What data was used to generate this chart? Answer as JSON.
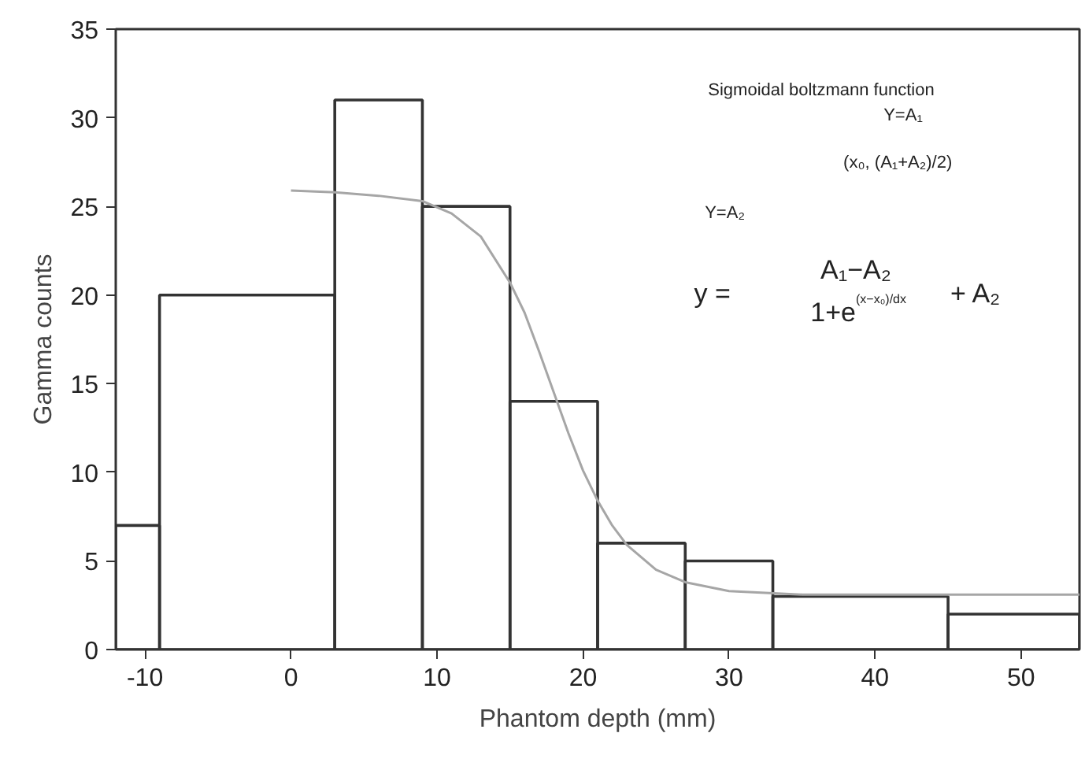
{
  "chart_data": {
    "type": "histogram",
    "xlabel": "Phantom depth (mm)",
    "ylabel": "Gamma counts",
    "series": [
      {
        "color": "#333333",
        "bins": [
          -12,
          -9,
          3,
          9,
          15,
          21,
          27,
          33,
          45,
          54
        ],
        "values": [
          7,
          20,
          31,
          25,
          14,
          6,
          5,
          3,
          2
        ]
      },
      {
        "type": "line",
        "color": "#a6a6a6",
        "x": [
          0,
          3,
          6,
          9,
          11,
          13,
          15,
          16,
          17,
          18,
          19,
          20,
          21,
          22,
          23,
          25,
          27,
          30,
          35,
          40,
          45,
          54
        ],
        "values": [
          25.9,
          25.8,
          25.6,
          25.3,
          24.6,
          23.3,
          20.7,
          19.0,
          16.8,
          14.5,
          12.2,
          10.1,
          8.4,
          7.0,
          5.9,
          4.5,
          3.8,
          3.3,
          3.1,
          3.1,
          3.1,
          3.1
        ]
      }
    ],
    "xlim": [
      -12,
      54
    ],
    "ylim": [
      0,
      35
    ],
    "xticks": [
      -10,
      0,
      10,
      20,
      30,
      40,
      50
    ],
    "yticks": [
      0,
      5,
      10,
      15,
      20,
      25,
      30,
      35
    ],
    "grid": false,
    "marker": "none",
    "line_style": "solid",
    "annotations": [
      "Sigmoidal boltzmann function",
      "Y=A₁",
      "Y=A₂",
      "(x₀, (A₁+A₂)/2)",
      "y =",
      "A₁−A₂",
      "1+e$^{(x−x₀)/dx}$",
      "+ A₂"
    ]
  }
}
